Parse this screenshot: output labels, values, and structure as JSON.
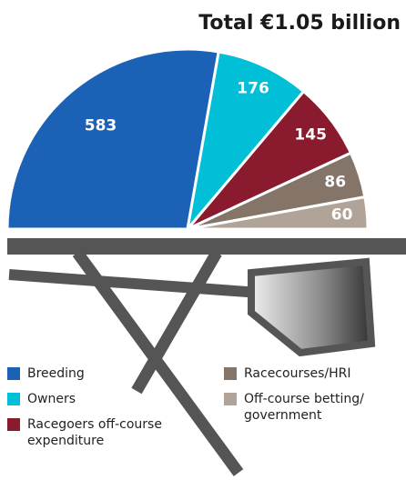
{
  "chart_data": {
    "type": "pie",
    "title": "Total €1.05 billion",
    "categories": [
      "Breeding",
      "Owners",
      "Racegoers off-course expenditure",
      "Racecourses/HRI",
      "Off-course betting/ government"
    ],
    "values": [
      583,
      176,
      145,
      86,
      60
    ],
    "colors": [
      "#1b62b7",
      "#00bfd7",
      "#8a1a2e",
      "#857468",
      "#b0a398"
    ]
  }
}
